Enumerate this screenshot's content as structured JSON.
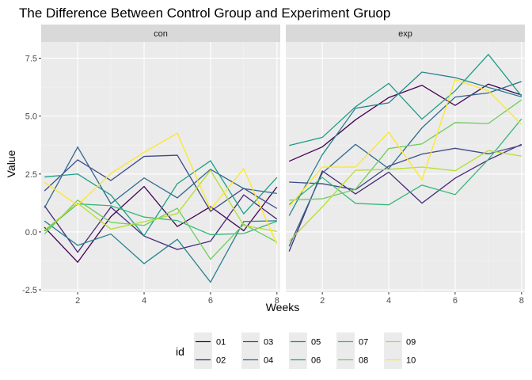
{
  "chart_data": {
    "type": "line",
    "title": "The Difference Between Control Group and Experiment Gruop",
    "xlabel": "Weeks",
    "ylabel": "Value",
    "xlim": [
      0.9,
      8.1
    ],
    "ylim": [
      -2.6,
      8.2
    ],
    "x_ticks": [
      2,
      4,
      6,
      8
    ],
    "x_tick_labels": [
      "2",
      "4",
      "6",
      "8"
    ],
    "y_ticks": [
      -2.5,
      0,
      2.5,
      5,
      7.5
    ],
    "y_tick_labels": [
      "-2.5",
      "0.0",
      "2.5",
      "5.0",
      "7.5"
    ],
    "grid": true,
    "legend": {
      "title": "id",
      "position": "bottom"
    },
    "weeks": [
      1,
      2,
      3,
      4,
      5,
      6,
      7,
      8
    ],
    "panels": [
      {
        "name": "con",
        "series": [
          {
            "name": "01",
            "color": "#440154",
            "values": [
              0.2,
              -1.31,
              0.66,
              1.96,
              0.23,
              1.09,
              0.05,
              1.94
            ]
          },
          {
            "name": "02",
            "color": "#482878",
            "values": [
              1.13,
              -0.88,
              1.07,
              -0.18,
              -0.76,
              -0.4,
              1.6,
              0.55
            ]
          },
          {
            "name": "03",
            "color": "#3E4A89",
            "values": [
              1.77,
              3.11,
              2.22,
              3.26,
              3.31,
              0.89,
              1.88,
              1.01
            ]
          },
          {
            "name": "04",
            "color": "#31688E",
            "values": [
              1.04,
              3.66,
              1.22,
              2.33,
              1.47,
              2.7,
              1.87,
              1.66
            ]
          },
          {
            "name": "05",
            "color": "#26828E",
            "values": [
              0.47,
              -0.58,
              -0.09,
              -1.37,
              -0.32,
              -2.17,
              0.45,
              0.48
            ]
          },
          {
            "name": "06",
            "color": "#1F9E89",
            "values": [
              2.37,
              2.5,
              1.59,
              -0.16,
              2.08,
              3.07,
              0.78,
              2.35
            ]
          },
          {
            "name": "07",
            "color": "#35B779",
            "values": [
              0.03,
              1.21,
              1.13,
              0.64,
              0.49,
              -0.12,
              -0.07,
              0.46
            ]
          },
          {
            "name": "08",
            "color": "#6DCD59",
            "values": [
              -0.09,
              1.37,
              0.41,
              0.28,
              1.02,
              -1.18,
              0.33,
              -0.44
            ]
          },
          {
            "name": "09",
            "color": "#B4DE2C",
            "values": [
              0.08,
              1.24,
              0.12,
              0.44,
              0.79,
              2.66,
              0.28,
              0.02
            ]
          },
          {
            "name": "10",
            "color": "#FDE725",
            "values": [
              2.14,
              1.15,
              2.52,
              3.44,
              4.26,
              0.97,
              2.73,
              -0.53
            ]
          }
        ]
      },
      {
        "name": "exp",
        "series": [
          {
            "name": "01",
            "color": "#440154",
            "values": [
              3.05,
              3.67,
              4.84,
              5.8,
              6.33,
              5.46,
              6.38,
              5.91
            ]
          },
          {
            "name": "02",
            "color": "#482878",
            "values": [
              -0.84,
              2.63,
              1.64,
              2.58,
              1.24,
              2.32,
              3.11,
              3.78
            ]
          },
          {
            "name": "03",
            "color": "#3E4A89",
            "values": [
              2.15,
              2.08,
              1.82,
              2.84,
              3.36,
              3.61,
              3.37,
              3.74
            ]
          },
          {
            "name": "04",
            "color": "#31688E",
            "values": [
              -0.62,
              2.54,
              3.78,
              2.73,
              4.49,
              5.82,
              6.0,
              6.49
            ]
          },
          {
            "name": "05",
            "color": "#26828E",
            "values": [
              0.7,
              3.33,
              5.34,
              5.57,
              6.9,
              6.66,
              6.24,
              5.83
            ]
          },
          {
            "name": "06",
            "color": "#1F9E89",
            "values": [
              3.73,
              4.08,
              5.4,
              6.41,
              4.87,
              6.09,
              7.66,
              5.86
            ]
          },
          {
            "name": "07",
            "color": "#35B779",
            "values": [
              1.18,
              2.35,
              1.23,
              1.17,
              2.02,
              1.61,
              3.13,
              4.88
            ]
          },
          {
            "name": "08",
            "color": "#6DCD59",
            "values": [
              1.37,
              1.43,
              1.84,
              3.6,
              3.8,
              4.72,
              4.68,
              5.7
            ]
          },
          {
            "name": "09",
            "color": "#B4DE2C",
            "values": [
              -0.4,
              1.08,
              2.66,
              2.7,
              2.8,
              2.64,
              3.51,
              3.27
            ]
          },
          {
            "name": "10",
            "color": "#FDE725",
            "values": [
              1.09,
              2.8,
              2.8,
              4.3,
              2.25,
              6.57,
              6.09,
              4.64
            ]
          }
        ]
      }
    ]
  }
}
